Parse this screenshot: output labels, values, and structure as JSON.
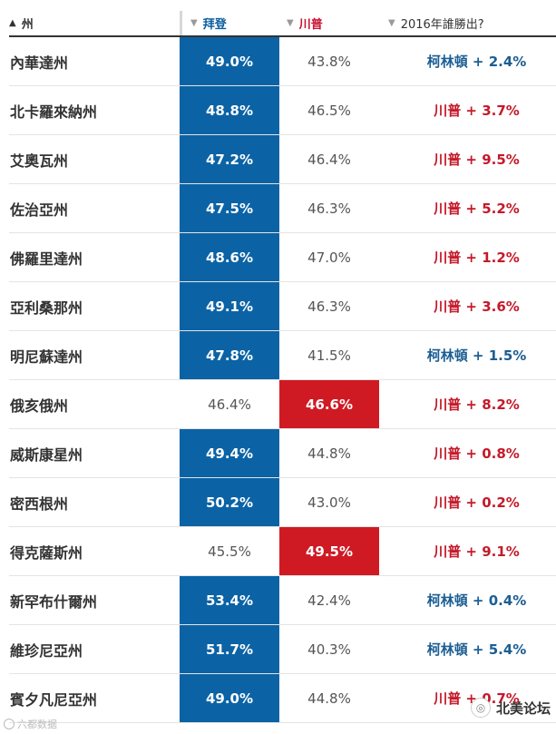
{
  "header": {
    "state_arrow": "▲",
    "state_label": "州",
    "biden_arrow": "▼",
    "biden_label": "拜登",
    "trump_arrow": "▼",
    "trump_label": "川普",
    "y2016_arrow": "▼",
    "y2016_label": "2016年誰勝出?"
  },
  "rows": [
    {
      "state": "內華達州",
      "biden": "49.0%",
      "trump": "43.8%",
      "winner": "biden",
      "y2016": "柯林頓 + 2.4%",
      "party2016": "d"
    },
    {
      "state": "北卡羅來納州",
      "biden": "48.8%",
      "trump": "46.5%",
      "winner": "biden",
      "y2016": "川普 + 3.7%",
      "party2016": "r"
    },
    {
      "state": "艾奧瓦州",
      "biden": "47.2%",
      "trump": "46.4%",
      "winner": "biden",
      "y2016": "川普 + 9.5%",
      "party2016": "r"
    },
    {
      "state": "佐治亞州",
      "biden": "47.5%",
      "trump": "46.3%",
      "winner": "biden",
      "y2016": "川普 + 5.2%",
      "party2016": "r"
    },
    {
      "state": "佛羅里達州",
      "biden": "48.6%",
      "trump": "47.0%",
      "winner": "biden",
      "y2016": "川普 + 1.2%",
      "party2016": "r"
    },
    {
      "state": "亞利桑那州",
      "biden": "49.1%",
      "trump": "46.3%",
      "winner": "biden",
      "y2016": "川普 + 3.6%",
      "party2016": "r"
    },
    {
      "state": "明尼蘇達州",
      "biden": "47.8%",
      "trump": "41.5%",
      "winner": "biden",
      "y2016": "柯林頓 + 1.5%",
      "party2016": "d"
    },
    {
      "state": "俄亥俄州",
      "biden": "46.4%",
      "trump": "46.6%",
      "winner": "trump",
      "y2016": "川普 + 8.2%",
      "party2016": "r"
    },
    {
      "state": "威斯康星州",
      "biden": "49.4%",
      "trump": "44.8%",
      "winner": "biden",
      "y2016": "川普 + 0.8%",
      "party2016": "r"
    },
    {
      "state": "密西根州",
      "biden": "50.2%",
      "trump": "43.0%",
      "winner": "biden",
      "y2016": "川普 + 0.2%",
      "party2016": "r"
    },
    {
      "state": "得克薩斯州",
      "biden": "45.5%",
      "trump": "49.5%",
      "winner": "trump",
      "y2016": "川普 + 9.1%",
      "party2016": "r"
    },
    {
      "state": "新罕布什爾州",
      "biden": "53.4%",
      "trump": "42.4%",
      "winner": "biden",
      "y2016": "柯林頓 + 0.4%",
      "party2016": "d"
    },
    {
      "state": "維珍尼亞州",
      "biden": "51.7%",
      "trump": "40.3%",
      "winner": "biden",
      "y2016": "柯林頓 + 5.4%",
      "party2016": "d"
    },
    {
      "state": "賓夕凡尼亞州",
      "biden": "49.0%",
      "trump": "44.8%",
      "winner": "biden",
      "y2016": "川普 + 0.7%",
      "party2016": "r"
    }
  ],
  "colors": {
    "biden": "#0b63a5",
    "trump": "#cf1a23"
  },
  "watermark": {
    "left": "六都数据",
    "right": "北美论坛"
  }
}
